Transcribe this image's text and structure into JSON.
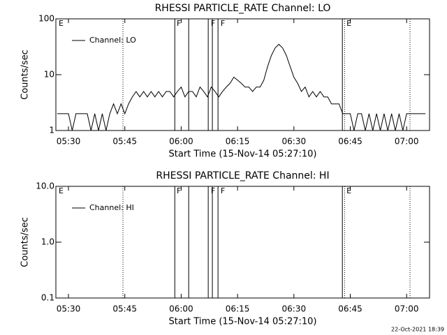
{
  "chart_data": [
    {
      "type": "line",
      "title": "RHESSI PARTICLE_RATE Channel: LO",
      "xlabel": "Start Time (15-Nov-14 05:27:10)",
      "ylabel": "Counts/sec",
      "x": [
        327,
        328,
        329,
        330,
        331,
        332,
        333,
        334,
        335,
        336,
        337,
        338,
        339,
        340,
        341,
        342,
        343,
        344,
        345,
        346,
        347,
        348,
        349,
        350,
        351,
        352,
        353,
        354,
        355,
        356,
        357,
        358,
        359,
        360,
        361,
        362,
        363,
        364,
        365,
        366,
        367,
        368,
        369,
        370,
        371,
        372,
        373,
        374,
        375,
        376,
        377,
        378,
        379,
        380,
        381,
        382,
        383,
        384,
        385,
        386,
        387,
        388,
        389,
        390,
        391,
        392,
        393,
        394,
        395,
        396,
        397,
        398,
        399,
        400,
        401,
        402,
        403,
        404,
        405,
        406,
        407,
        408,
        409,
        410,
        411,
        412,
        413,
        414,
        415,
        416,
        417,
        418,
        419,
        420,
        421,
        422,
        423,
        424,
        425
      ],
      "series": [
        {
          "name": "Channel: LO",
          "color": "#000000",
          "values": [
            2,
            2,
            2,
            2,
            1,
            2,
            2,
            2,
            2,
            1,
            2,
            1,
            2,
            1,
            2,
            3,
            2,
            3,
            2,
            3,
            4,
            5,
            4,
            5,
            4,
            5,
            4,
            5,
            4,
            5,
            5,
            4,
            5,
            6,
            4,
            5,
            5,
            4,
            6,
            5,
            4,
            6,
            5,
            4,
            5,
            6,
            7,
            9,
            8,
            7,
            6,
            6,
            5,
            6,
            6,
            8,
            14,
            22,
            30,
            35,
            30,
            22,
            14,
            9,
            7,
            5,
            6,
            4,
            5,
            4,
            5,
            4,
            4,
            3,
            3,
            3,
            2,
            2,
            2,
            1,
            2,
            2,
            1,
            2,
            1,
            2,
            1,
            2,
            1,
            2,
            1,
            2,
            1,
            2,
            2,
            2,
            2,
            2,
            2
          ]
        }
      ],
      "xlim": [
        326.65,
        426.1
      ],
      "xticks": [
        {
          "value": 330,
          "label": "05:30"
        },
        {
          "value": 345,
          "label": "05:45"
        },
        {
          "value": 360,
          "label": "06:00"
        },
        {
          "value": 375,
          "label": "06:15"
        },
        {
          "value": 390,
          "label": "06:30"
        },
        {
          "value": 405,
          "label": "06:45"
        },
        {
          "value": 420,
          "label": "07:00"
        }
      ],
      "ylim": [
        1,
        100
      ],
      "yticks": [
        1,
        10,
        100
      ],
      "log_y": true,
      "legend": "upper left",
      "vlines": [
        {
          "x": 344.5,
          "dashed": true
        },
        {
          "x": 358.3,
          "dashed": false
        },
        {
          "x": 362.0,
          "dashed": false
        },
        {
          "x": 367.2,
          "dashed": false
        },
        {
          "x": 368.3,
          "dashed": false
        },
        {
          "x": 369.8,
          "dashed": false
        },
        {
          "x": 402.9,
          "dashed": false
        },
        {
          "x": 403.5,
          "dashed": true
        },
        {
          "x": 420.9,
          "dashed": true
        }
      ],
      "flags": [
        {
          "x": 327.4,
          "text": "E"
        },
        {
          "x": 358.8,
          "text": "F"
        },
        {
          "x": 367.9,
          "text": "F"
        },
        {
          "x": 370.5,
          "text": "F"
        },
        {
          "x": 404.0,
          "text": "E"
        }
      ]
    },
    {
      "type": "line",
      "title": "RHESSI PARTICLE_RATE Channel: HI",
      "xlabel": "Start Time (15-Nov-14 05:27:10)",
      "ylabel": "Counts/sec",
      "x": [],
      "series": [
        {
          "name": "Channel: HI",
          "color": "#000000",
          "values": []
        }
      ],
      "xlim": [
        326.65,
        426.1
      ],
      "xticks": [
        {
          "value": 330,
          "label": "05:30"
        },
        {
          "value": 345,
          "label": "05:45"
        },
        {
          "value": 360,
          "label": "06:00"
        },
        {
          "value": 375,
          "label": "06:15"
        },
        {
          "value": 390,
          "label": "06:30"
        },
        {
          "value": 405,
          "label": "06:45"
        },
        {
          "value": 420,
          "label": "07:00"
        }
      ],
      "ylim": [
        0.1,
        10
      ],
      "yticks": [
        {
          "value": 0.1,
          "label": "0.1"
        },
        {
          "value": 1,
          "label": "1.0"
        },
        {
          "value": 10,
          "label": "10.0"
        }
      ],
      "log_y": true,
      "legend": "upper left",
      "vlines": [
        {
          "x": 344.5,
          "dashed": true
        },
        {
          "x": 358.3,
          "dashed": false
        },
        {
          "x": 362.0,
          "dashed": false
        },
        {
          "x": 367.2,
          "dashed": false
        },
        {
          "x": 368.3,
          "dashed": false
        },
        {
          "x": 369.8,
          "dashed": false
        },
        {
          "x": 402.9,
          "dashed": false
        },
        {
          "x": 403.5,
          "dashed": true
        },
        {
          "x": 420.9,
          "dashed": true
        }
      ],
      "flags": [
        {
          "x": 327.4,
          "text": "E"
        },
        {
          "x": 358.8,
          "text": "F"
        },
        {
          "x": 367.9,
          "text": "F"
        },
        {
          "x": 370.5,
          "text": "F"
        },
        {
          "x": 404.0,
          "text": "E"
        }
      ]
    }
  ],
  "footer": "22-Oct-2021 18:39"
}
